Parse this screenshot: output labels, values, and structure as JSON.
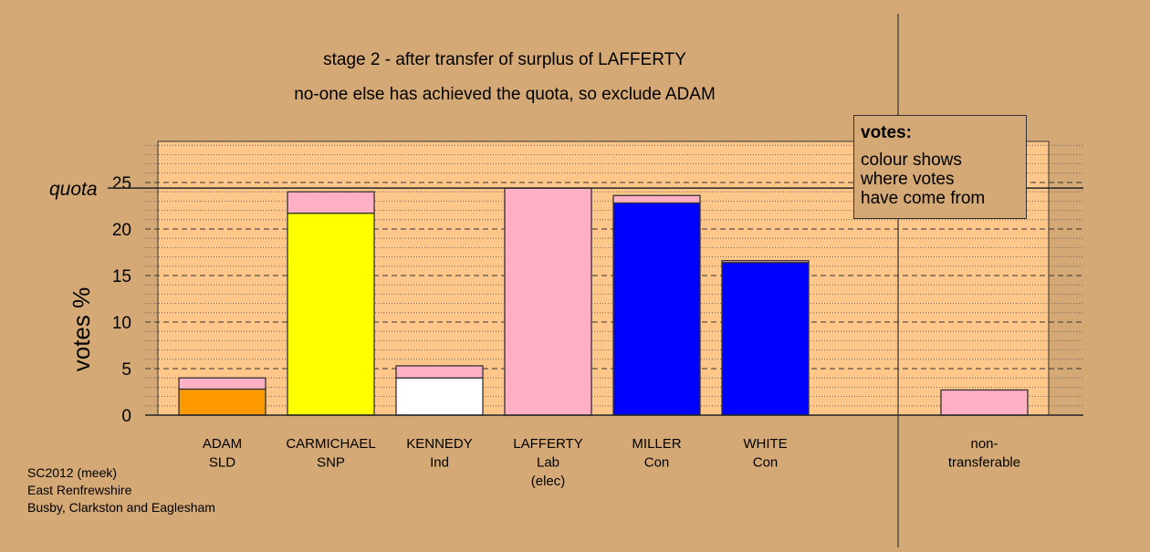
{
  "title": "stage 2 - after transfer of surplus of LAFFERTY",
  "subtitle": "no-one else has achieved the quota, so exclude ADAM",
  "caption": [
    "SC2012 (meek)",
    "East Renfrewshire",
    "Busby, Clarkston and Eaglesham"
  ],
  "legend": {
    "title": "votes:",
    "text": "colour shows\nwhere votes\nhave come from"
  },
  "colors": {
    "background": "#d4a976",
    "plot_area": "#ffc78a",
    "SLD": "#ff9900",
    "SNP": "#ffff00",
    "Ind": "#ffffff",
    "Lab": "#ffb0c4",
    "Con": "#0000ff",
    "bar_outline": "#333333"
  },
  "chart_data": {
    "type": "bar",
    "stacked": true,
    "ylabel": "votes %",
    "ylim": [
      0,
      29
    ],
    "yticks": [
      0,
      5,
      10,
      15,
      20,
      25
    ],
    "quota": 24.4,
    "quota_label": "quota",
    "grid": true,
    "legend_position": "top-right",
    "categories": [
      {
        "lines": [
          "ADAM",
          "SLD"
        ],
        "segments": [
          {
            "from": "SLD",
            "value": 2.8
          },
          {
            "from": "Lab",
            "value": 1.2
          }
        ]
      },
      {
        "lines": [
          "CARMICHAEL",
          "SNP"
        ],
        "segments": [
          {
            "from": "SNP",
            "value": 21.7
          },
          {
            "from": "Lab",
            "value": 2.3
          }
        ]
      },
      {
        "lines": [
          "KENNEDY",
          "Ind"
        ],
        "segments": [
          {
            "from": "Ind",
            "value": 4.0
          },
          {
            "from": "Lab",
            "value": 1.3
          }
        ]
      },
      {
        "lines": [
          "LAFFERTY",
          "Lab",
          "(elec)"
        ],
        "segments": [
          {
            "from": "Lab",
            "value": 24.4
          }
        ]
      },
      {
        "lines": [
          "MILLER",
          "Con"
        ],
        "segments": [
          {
            "from": "Con",
            "value": 22.8
          },
          {
            "from": "Lab",
            "value": 0.8
          }
        ]
      },
      {
        "lines": [
          "WHITE",
          "Con"
        ],
        "segments": [
          {
            "from": "Con",
            "value": 16.4
          },
          {
            "from": "Lab",
            "value": 0.2
          }
        ]
      },
      {
        "lines": [
          "non-",
          "transferable"
        ],
        "segments": [
          {
            "from": "Lab",
            "value": 2.7
          }
        ]
      }
    ]
  }
}
